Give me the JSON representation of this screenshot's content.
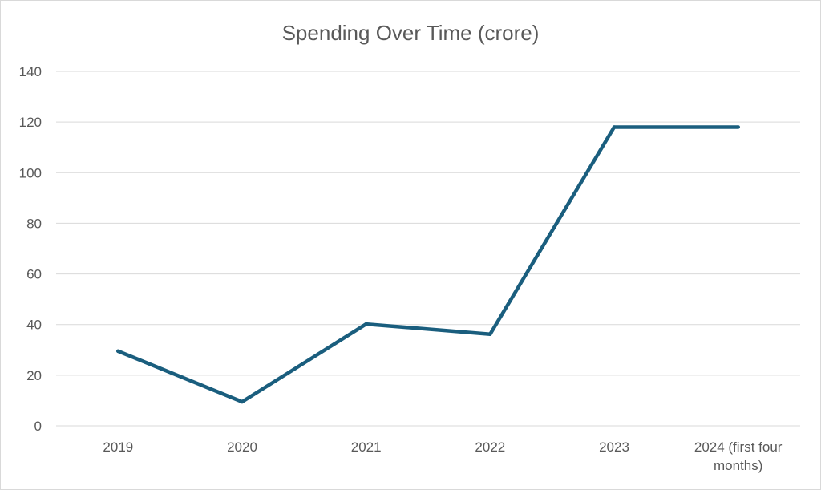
{
  "chart_data": {
    "type": "line",
    "title": "Spending Over Time (crore)",
    "xlabel": "",
    "ylabel": "",
    "categories": [
      "2019",
      "2020",
      "2021",
      "2022",
      "2023",
      "2024 (first four months)"
    ],
    "series": [
      {
        "values": [
          29.5,
          9.5,
          40.2,
          36.2,
          118,
          118
        ],
        "color": "#1a5e7e"
      }
    ],
    "ylim": [
      0,
      140
    ],
    "yticks": [
      0,
      20,
      40,
      60,
      80,
      100,
      120,
      140
    ],
    "grid": true,
    "legend": "none"
  }
}
